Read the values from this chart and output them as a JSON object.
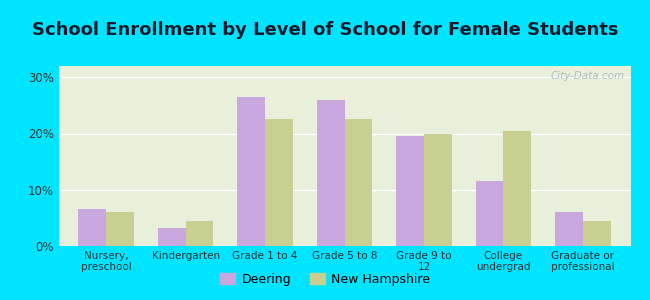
{
  "title": "School Enrollment by Level of School for Female Students",
  "categories": [
    "Nursery,\npreschool",
    "Kindergarten",
    "Grade 1 to 4",
    "Grade 5 to 8",
    "Grade 9 to\n12",
    "College\nundergrad",
    "Graduate or\nprofessional"
  ],
  "deering": [
    6.5,
    3.2,
    26.5,
    26.0,
    19.5,
    11.5,
    6.0
  ],
  "new_hampshire": [
    6.0,
    4.5,
    22.5,
    22.5,
    20.0,
    20.5,
    4.5
  ],
  "deering_color": "#c9a8e0",
  "nh_color": "#c8cf90",
  "background_outer": "#00e5ff",
  "background_inner": "#e8f0dc",
  "ylim": [
    0,
    32
  ],
  "yticks": [
    0,
    10,
    20,
    30
  ],
  "ytick_labels": [
    "0%",
    "10%",
    "20%",
    "30%"
  ],
  "title_fontsize": 13,
  "legend_label_deering": "Deering",
  "legend_label_nh": "New Hampshire",
  "bar_width": 0.35,
  "watermark": "City-Data.com"
}
